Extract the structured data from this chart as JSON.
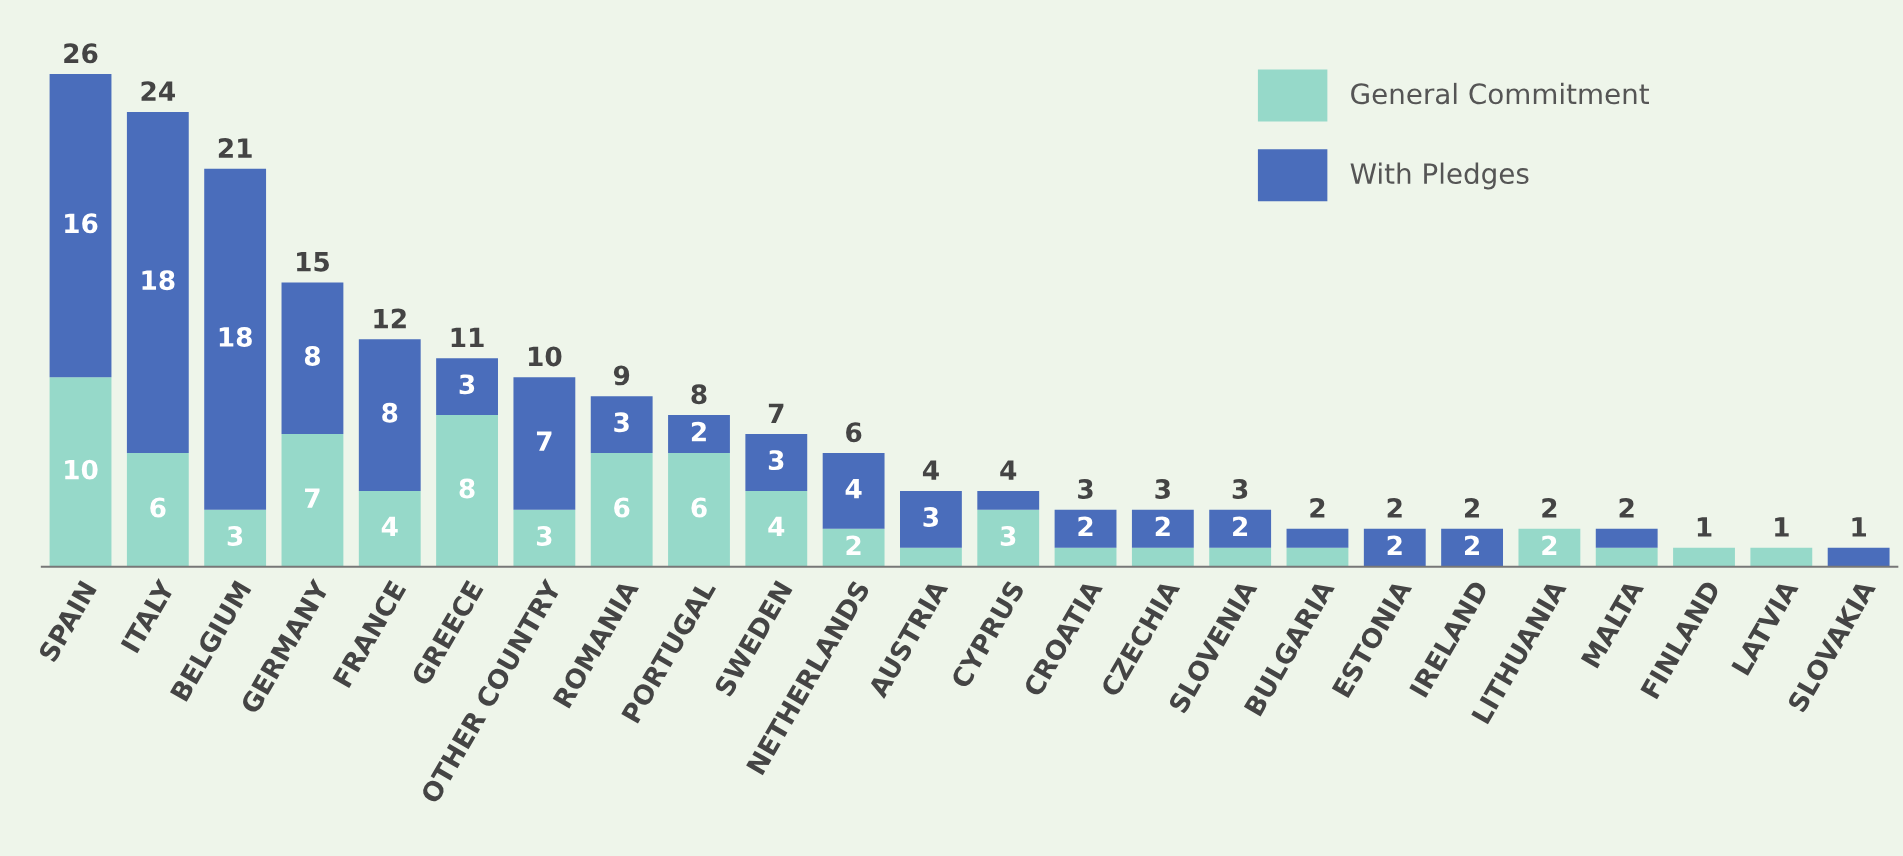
{
  "chart_data": {
    "type": "bar",
    "stacked": true,
    "legend": "top right",
    "grid": false,
    "categories": [
      "SPAIN",
      "ITALY",
      "BELGIUM",
      "GERMANY",
      "FRANCE",
      "GREECE",
      "OTHER COUNTRY",
      "ROMANIA",
      "PORTUGAL",
      "SWEDEN",
      "NETHERLANDS",
      "AUSTRIA",
      "CYPRUS",
      "CROATIA",
      "CZECHIA",
      "SLOVENIA",
      "BULGARIA",
      "ESTONIA",
      "IRELAND",
      "LITHUANIA",
      "MALTA",
      "FINLAND",
      "LATVIA",
      "SLOVAKIA"
    ],
    "series": [
      {
        "name": "General Commitment",
        "color": "#96d9c9",
        "values": [
          10,
          6,
          3,
          7,
          4,
          8,
          3,
          6,
          6,
          4,
          2,
          1,
          3,
          1,
          1,
          1,
          1,
          0,
          0,
          2,
          1,
          1,
          1,
          0
        ],
        "value_labels": [
          "10",
          "6",
          "3",
          "7",
          "4",
          "8",
          "3",
          "6",
          "6",
          "4",
          "2",
          null,
          "3",
          null,
          null,
          null,
          null,
          null,
          null,
          "2",
          null,
          null,
          null,
          null
        ]
      },
      {
        "name": "With Pledges",
        "color": "#4a6dbb",
        "values": [
          16,
          18,
          18,
          8,
          8,
          3,
          7,
          3,
          2,
          3,
          4,
          3,
          1,
          2,
          2,
          2,
          1,
          2,
          2,
          0,
          1,
          0,
          0,
          1
        ],
        "value_labels": [
          "16",
          "18",
          "18",
          "8",
          "8",
          "3",
          "7",
          "3",
          "2",
          "3",
          "4",
          "3",
          null,
          "2",
          "2",
          "2",
          null,
          "2",
          "2",
          null,
          null,
          null,
          null,
          null
        ]
      }
    ],
    "totals": [
      "26",
      "24",
      "21",
      "15",
      "12",
      "11",
      "10",
      "9",
      "8",
      "7",
      "6",
      "4",
      "4",
      "3",
      "3",
      "3",
      "2",
      "2",
      "2",
      "2",
      "2",
      "1",
      "1",
      "1"
    ]
  }
}
